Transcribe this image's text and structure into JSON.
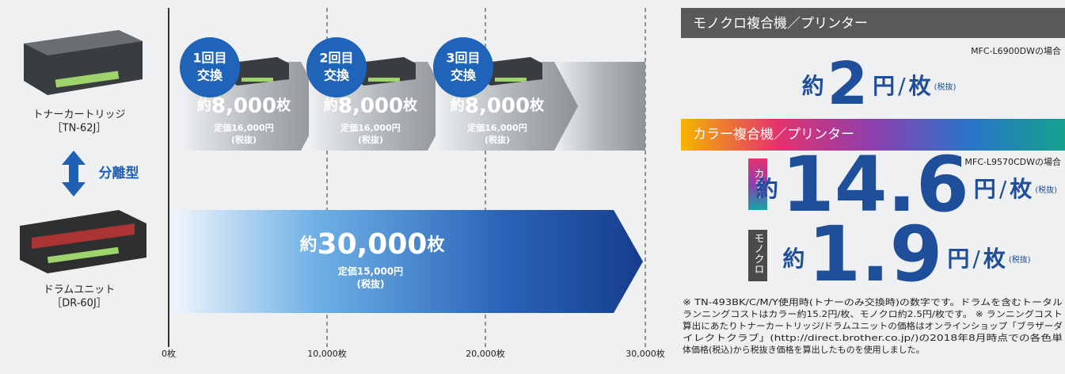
{
  "left": {
    "toner_label": "トナーカートリッジ",
    "toner_model": "［TN-62J］",
    "separation": "分離型",
    "drum_label": "ドラムユニット",
    "drum_model": "［DR-60J］"
  },
  "axis": {
    "ticks": [
      "0枚",
      "10,000枚",
      "20,000枚",
      "30,000枚"
    ]
  },
  "toner_replacements": [
    {
      "badge_line1": "1回目",
      "badge_line2": "交換",
      "yield_prefix": "約",
      "yield": "8,000",
      "yield_unit": "枚",
      "price": "定価16,000円",
      "tax": "(税抜)"
    },
    {
      "badge_line1": "2回目",
      "badge_line2": "交換",
      "yield_prefix": "約",
      "yield": "8,000",
      "yield_unit": "枚",
      "price": "定価16,000円",
      "tax": "(税抜)"
    },
    {
      "badge_line1": "3回目",
      "badge_line2": "交換",
      "yield_prefix": "約",
      "yield": "8,000",
      "yield_unit": "枚",
      "price": "定価16,000円",
      "tax": "(税抜)"
    }
  ],
  "drum": {
    "yield_prefix": "約",
    "yield": "30,000",
    "yield_unit": "枚",
    "price": "定価15,000円",
    "tax": "(税抜)"
  },
  "mono": {
    "header": "モノクロ複合機／プリンター",
    "model": "MFC-L6900DWの場合",
    "prefix": "約",
    "cost": "2",
    "unit": "円",
    "slash": "/",
    "per": "枚",
    "tax": "(税抜)"
  },
  "color": {
    "header": "カラー複合機／プリンター",
    "model": "MFC-L9570CDWの場合",
    "rows": [
      {
        "tag": "カラー",
        "prefix": "約",
        "cost": "14.6",
        "unit": "円",
        "slash": "/",
        "per": "枚",
        "tax": "(税抜)"
      },
      {
        "tag": "モノクロ",
        "prefix": "約",
        "cost": "1.9",
        "unit": "円",
        "slash": "/",
        "per": "枚",
        "tax": "(税抜)"
      }
    ]
  },
  "note": [
    "※ TN-493BK/C/M/Y使用時(トナーのみ交換時)の数字です。ドラムを含むトータル",
    "ランニングコストはカラー約15.2円/枚、モノクロ約2.5円/枚です。 ※ ランニングコスト",
    "算出にあたりトナーカートリッジ/ドラムユニットの価格はオンラインショップ「ブラザーダ",
    "イレクトクラブ」(http://direct.brother.co.jp/)の2018年8月時点での各色単",
    "体価格(税込)から税抜き価格を算出したものを使用しました。"
  ]
}
